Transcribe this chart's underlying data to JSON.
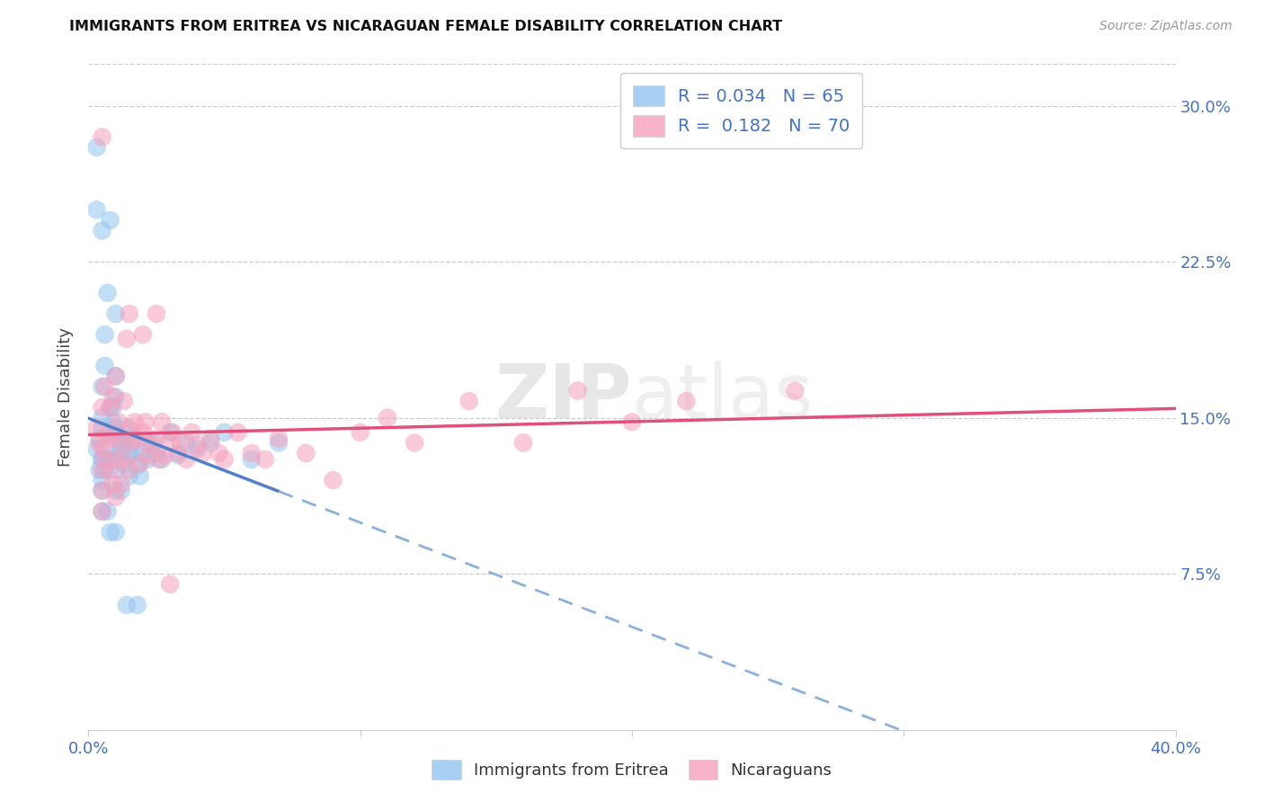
{
  "title": "IMMIGRANTS FROM ERITREA VS NICARAGUAN FEMALE DISABILITY CORRELATION CHART",
  "source": "Source: ZipAtlas.com",
  "ylabel": "Female Disability",
  "right_yticks": [
    "30.0%",
    "22.5%",
    "15.0%",
    "7.5%"
  ],
  "right_ytick_vals": [
    0.3,
    0.225,
    0.15,
    0.075
  ],
  "xmin": 0.0,
  "xmax": 0.4,
  "ymin": 0.0,
  "ymax": 0.32,
  "color_blue": "#92C5F0",
  "color_pink": "#F5A0BC",
  "line_blue": "#5080C8",
  "line_blue_dash": "#8AB0E0",
  "line_pink": "#E0507A",
  "watermark": "ZIPatlas",
  "blue_scatter_x": [
    0.003,
    0.004,
    0.004,
    0.005,
    0.005,
    0.005,
    0.005,
    0.005,
    0.005,
    0.005,
    0.005,
    0.006,
    0.006,
    0.006,
    0.007,
    0.007,
    0.007,
    0.008,
    0.008,
    0.008,
    0.009,
    0.009,
    0.009,
    0.009,
    0.01,
    0.01,
    0.01,
    0.01,
    0.01,
    0.01,
    0.01,
    0.011,
    0.012,
    0.012,
    0.013,
    0.013,
    0.014,
    0.015,
    0.015,
    0.015,
    0.016,
    0.017,
    0.018,
    0.019,
    0.02,
    0.021,
    0.022,
    0.024,
    0.025,
    0.027,
    0.03,
    0.033,
    0.036,
    0.04,
    0.045,
    0.05,
    0.06,
    0.07,
    0.003,
    0.008,
    0.01,
    0.014,
    0.003,
    0.005,
    0.018
  ],
  "blue_scatter_y": [
    0.135,
    0.14,
    0.125,
    0.15,
    0.145,
    0.13,
    0.12,
    0.115,
    0.105,
    0.13,
    0.165,
    0.175,
    0.19,
    0.125,
    0.21,
    0.13,
    0.105,
    0.095,
    0.13,
    0.155,
    0.13,
    0.142,
    0.148,
    0.155,
    0.16,
    0.17,
    0.125,
    0.115,
    0.095,
    0.135,
    0.145,
    0.14,
    0.135,
    0.115,
    0.138,
    0.128,
    0.145,
    0.133,
    0.14,
    0.122,
    0.132,
    0.14,
    0.127,
    0.122,
    0.133,
    0.138,
    0.13,
    0.138,
    0.133,
    0.13,
    0.143,
    0.132,
    0.138,
    0.135,
    0.138,
    0.143,
    0.13,
    0.138,
    0.28,
    0.245,
    0.2,
    0.06,
    0.25,
    0.24,
    0.06
  ],
  "pink_scatter_x": [
    0.003,
    0.004,
    0.005,
    0.005,
    0.005,
    0.005,
    0.005,
    0.006,
    0.006,
    0.007,
    0.008,
    0.008,
    0.009,
    0.009,
    0.009,
    0.01,
    0.01,
    0.01,
    0.011,
    0.012,
    0.012,
    0.013,
    0.013,
    0.014,
    0.015,
    0.015,
    0.016,
    0.017,
    0.018,
    0.019,
    0.02,
    0.021,
    0.022,
    0.023,
    0.025,
    0.026,
    0.027,
    0.028,
    0.03,
    0.031,
    0.033,
    0.034,
    0.036,
    0.038,
    0.04,
    0.042,
    0.045,
    0.048,
    0.05,
    0.055,
    0.06,
    0.065,
    0.07,
    0.08,
    0.09,
    0.1,
    0.11,
    0.12,
    0.14,
    0.16,
    0.18,
    0.2,
    0.22,
    0.26,
    0.005,
    0.015,
    0.02,
    0.025,
    0.03
  ],
  "pink_scatter_y": [
    0.145,
    0.138,
    0.155,
    0.135,
    0.125,
    0.115,
    0.105,
    0.165,
    0.13,
    0.142,
    0.155,
    0.125,
    0.16,
    0.14,
    0.118,
    0.17,
    0.13,
    0.112,
    0.148,
    0.138,
    0.118,
    0.158,
    0.13,
    0.188,
    0.145,
    0.125,
    0.138,
    0.148,
    0.14,
    0.128,
    0.143,
    0.148,
    0.132,
    0.137,
    0.14,
    0.13,
    0.148,
    0.132,
    0.138,
    0.143,
    0.133,
    0.138,
    0.13,
    0.143,
    0.137,
    0.133,
    0.14,
    0.133,
    0.13,
    0.143,
    0.133,
    0.13,
    0.14,
    0.133,
    0.12,
    0.143,
    0.15,
    0.138,
    0.158,
    0.138,
    0.163,
    0.148,
    0.158,
    0.163,
    0.285,
    0.2,
    0.19,
    0.2,
    0.07
  ]
}
